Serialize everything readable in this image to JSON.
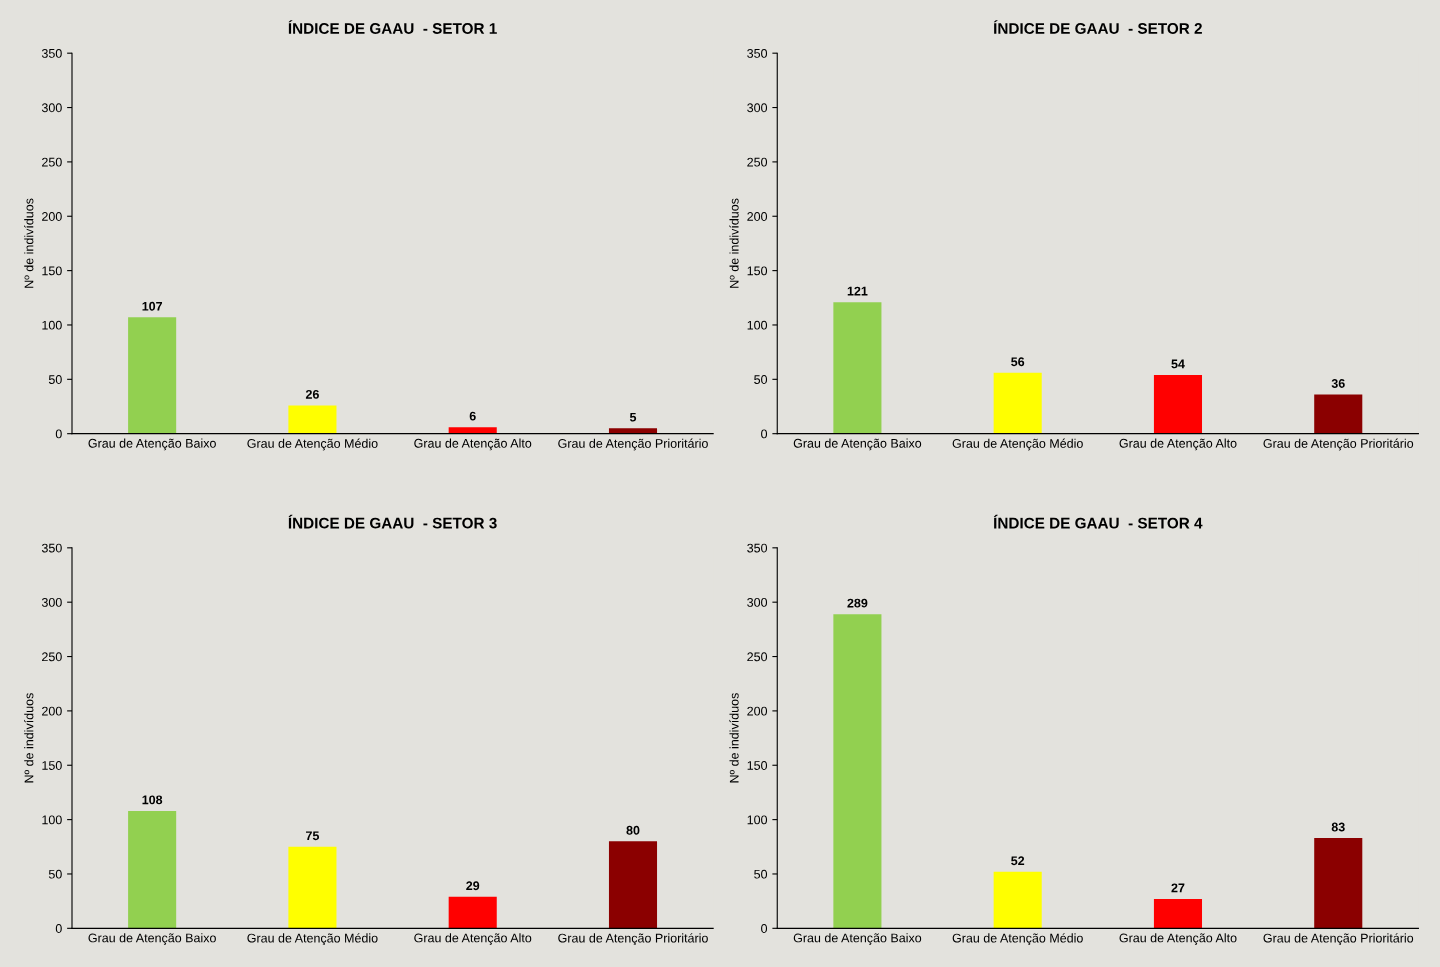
{
  "chart_data": [
    {
      "type": "bar",
      "title": "ÍNDICE DE GAAU  - SETOR 1",
      "ylabel": "Nº de indivíduos",
      "categories": [
        "Grau de Atenção Baixo",
        "Grau de Atenção Médio",
        "Grau de Atenção Alto",
        "Grau de Atenção Prioritário"
      ],
      "values": [
        107,
        26,
        6,
        5
      ],
      "colors": [
        "#92d050",
        "#ffff00",
        "#ff0000",
        "#8b0000"
      ],
      "ylim": [
        0,
        350
      ],
      "yticks": [
        0,
        50,
        100,
        150,
        200,
        250,
        300,
        350
      ],
      "data_labels": true
    },
    {
      "type": "bar",
      "title": "ÍNDICE DE GAAU  - SETOR 2",
      "ylabel": "Nº de indivíduos",
      "categories": [
        "Grau de Atenção Baixo",
        "Grau de Atenção Médio",
        "Grau de Atenção Alto",
        "Grau de Atenção Prioritário"
      ],
      "values": [
        121,
        56,
        54,
        36
      ],
      "colors": [
        "#92d050",
        "#ffff00",
        "#ff0000",
        "#8b0000"
      ],
      "ylim": [
        0,
        350
      ],
      "yticks": [
        0,
        50,
        100,
        150,
        200,
        250,
        300,
        350
      ],
      "data_labels": true
    },
    {
      "type": "bar",
      "title": "ÍNDICE DE GAAU  - SETOR 3",
      "ylabel": "Nº de indivíduos",
      "categories": [
        "Grau de Atenção Baixo",
        "Grau de Atenção Médio",
        "Grau de Atenção Alto",
        "Grau de Atenção Prioritário"
      ],
      "values": [
        108,
        75,
        29,
        80
      ],
      "colors": [
        "#92d050",
        "#ffff00",
        "#ff0000",
        "#8b0000"
      ],
      "ylim": [
        0,
        350
      ],
      "yticks": [
        0,
        50,
        100,
        150,
        200,
        250,
        300,
        350
      ],
      "data_labels": true
    },
    {
      "type": "bar",
      "title": "ÍNDICE DE GAAU  - SETOR 4",
      "ylabel": "Nº de indivíduos",
      "categories": [
        "Grau de Atenção Baixo",
        "Grau de Atenção Médio",
        "Grau de Atenção Alto",
        "Grau de Atenção Prioritário"
      ],
      "values": [
        289,
        52,
        27,
        83
      ],
      "colors": [
        "#92d050",
        "#ffff00",
        "#ff0000",
        "#8b0000"
      ],
      "ylim": [
        0,
        350
      ],
      "yticks": [
        0,
        50,
        100,
        150,
        200,
        250,
        300,
        350
      ],
      "data_labels": true
    }
  ]
}
